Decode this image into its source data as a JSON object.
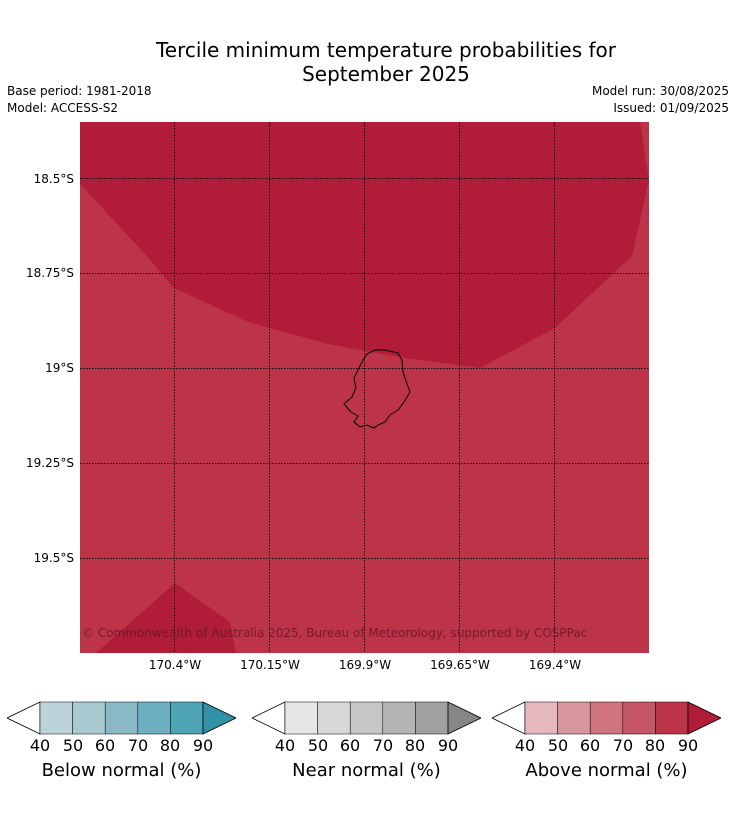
{
  "title_line1": "Tercile minimum temperature probabilities for",
  "title_line2": "September 2025",
  "base_period": "Base period: 1981-2018",
  "model": "Model: ACCESS-S2",
  "model_run": "Model run: 30/08/2025",
  "issued": "Issued: 01/09/2025",
  "copyright": "© Commonwealth of Australia 2025, Bureau of Meteorology, supported by COSPPac",
  "map": {
    "lat_labels": [
      "18.5°S",
      "18.75°S",
      "19°S",
      "19.25°S",
      "19.5°S"
    ],
    "lon_labels": [
      "170.4°W",
      "170.15°W",
      "169.9°W",
      "169.65°W",
      "169.4°W"
    ],
    "colors": {
      "above_80_90": "#bd3449",
      "above_90_plus": "#b11c39"
    }
  },
  "colorbars": [
    {
      "name": "below",
      "title": "Below normal (%)",
      "ticks": [
        "40",
        "50",
        "60",
        "70",
        "80",
        "90"
      ],
      "colors": [
        "#ffffff",
        "#bdd3da",
        "#a7c9cf",
        "#8ab8c5",
        "#6cb0c0",
        "#4ea3b5",
        "#3291a6"
      ]
    },
    {
      "name": "near",
      "title": "Near normal (%)",
      "ticks": [
        "40",
        "50",
        "60",
        "70",
        "80",
        "90"
      ],
      "colors": [
        "#ffffff",
        "#e6e6e6",
        "#d8d8d8",
        "#c7c7c7",
        "#b3b3b3",
        "#a0a0a0",
        "#868686"
      ]
    },
    {
      "name": "above",
      "title": "Above normal (%)",
      "ticks": [
        "40",
        "50",
        "60",
        "70",
        "80",
        "90"
      ],
      "colors": [
        "#ffffff",
        "#e4b8bd",
        "#d7959d",
        "#cf7480",
        "#c45667",
        "#bd3449",
        "#b11c39"
      ]
    }
  ]
}
